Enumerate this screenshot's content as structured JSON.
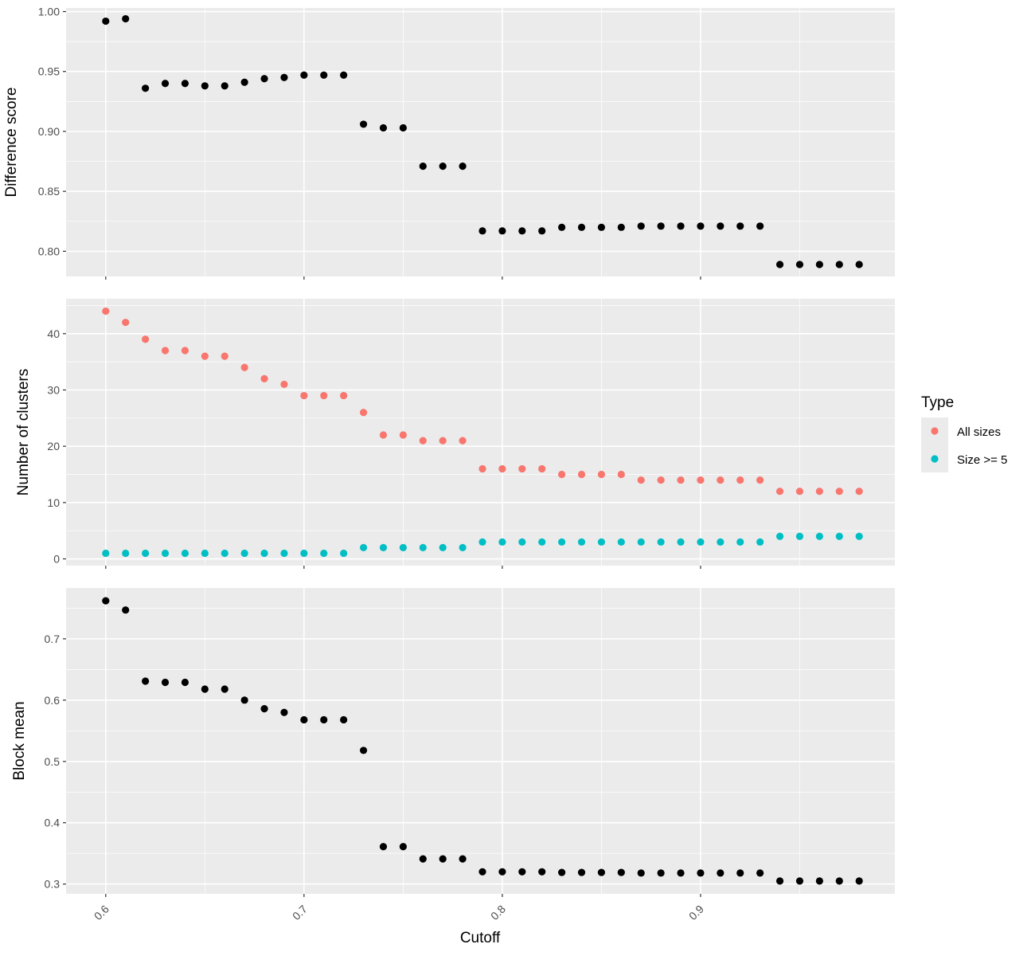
{
  "chart_data": {
    "type": "scatter",
    "shared_x": {
      "label": "Cutoff",
      "xlim": [
        0.58,
        0.998
      ],
      "ticks": [
        0.6,
        0.7,
        0.8,
        0.9
      ],
      "tick_labels": [
        "0.6",
        "0.7",
        "0.8",
        "0.9"
      ],
      "tick_label_rotation": "45deg",
      "values": [
        0.6,
        0.61,
        0.62,
        0.63,
        0.64,
        0.65,
        0.66,
        0.67,
        0.68,
        0.69,
        0.7,
        0.71,
        0.72,
        0.73,
        0.74,
        0.75,
        0.76,
        0.77,
        0.78,
        0.79,
        0.8,
        0.81,
        0.82,
        0.83,
        0.84,
        0.85,
        0.86,
        0.87,
        0.88,
        0.89,
        0.9,
        0.91,
        0.92,
        0.93,
        0.94,
        0.95,
        0.96,
        0.97,
        0.98
      ]
    },
    "grid": true,
    "background": "#ebebeb",
    "panels": [
      {
        "ylabel": "Difference score",
        "ylim": [
          0.779,
          1.003
        ],
        "yticks": [
          0.8,
          0.85,
          0.9,
          0.95,
          1.0
        ],
        "ytick_labels": [
          "0.80",
          "0.85",
          "0.90",
          "0.95",
          "1.00"
        ],
        "series": [
          {
            "color": "#000000",
            "values": [
              0.992,
              0.994,
              0.936,
              0.94,
              0.94,
              0.938,
              0.938,
              0.941,
              0.944,
              0.945,
              0.947,
              0.947,
              0.947,
              0.906,
              0.903,
              0.903,
              0.871,
              0.871,
              0.871,
              0.817,
              0.817,
              0.817,
              0.817,
              0.82,
              0.82,
              0.82,
              0.82,
              0.821,
              0.821,
              0.821,
              0.821,
              0.821,
              0.821,
              0.821,
              0.789,
              0.789,
              0.789,
              0.789,
              0.789
            ]
          }
        ]
      },
      {
        "ylabel": "Number of clusters",
        "ylim": [
          -1.2,
          46.2
        ],
        "yticks": [
          0,
          10,
          20,
          30,
          40
        ],
        "ytick_labels": [
          "0",
          "10",
          "20",
          "30",
          "40"
        ],
        "series": [
          {
            "name": "All sizes",
            "color": "#f8766d",
            "values": [
              44,
              42,
              39,
              37,
              37,
              36,
              36,
              34,
              32,
              31,
              29,
              29,
              29,
              26,
              22,
              22,
              21,
              21,
              21,
              16,
              16,
              16,
              16,
              15,
              15,
              15,
              15,
              14,
              14,
              14,
              14,
              14,
              14,
              14,
              12,
              12,
              12,
              12,
              12
            ]
          },
          {
            "name": "Size >= 5",
            "color": "#00bfc4",
            "values": [
              1,
              1,
              1,
              1,
              1,
              1,
              1,
              1,
              1,
              1,
              1,
              1,
              1,
              2,
              2,
              2,
              2,
              2,
              2,
              3,
              3,
              3,
              3,
              3,
              3,
              3,
              3,
              3,
              3,
              3,
              3,
              3,
              3,
              3,
              4,
              4,
              4,
              4,
              4
            ]
          }
        ]
      },
      {
        "ylabel": "Block mean",
        "ylim": [
          0.284,
          0.783
        ],
        "yticks": [
          0.3,
          0.4,
          0.5,
          0.6,
          0.7
        ],
        "ytick_labels": [
          "0.3",
          "0.4",
          "0.5",
          "0.6",
          "0.7"
        ],
        "series": [
          {
            "color": "#000000",
            "values": [
              0.762,
              0.747,
              0.631,
              0.629,
              0.629,
              0.618,
              0.618,
              0.6,
              0.586,
              0.58,
              0.568,
              0.568,
              0.568,
              0.518,
              0.361,
              0.361,
              0.341,
              0.341,
              0.341,
              0.32,
              0.32,
              0.32,
              0.32,
              0.319,
              0.319,
              0.319,
              0.319,
              0.318,
              0.318,
              0.318,
              0.318,
              0.318,
              0.318,
              0.318,
              0.305,
              0.305,
              0.305,
              0.305,
              0.305
            ]
          }
        ]
      }
    ],
    "legend": {
      "title": "Type",
      "placement": "right",
      "entries": [
        {
          "label": "All sizes",
          "color": "#f8766d"
        },
        {
          "label": "Size >= 5",
          "color": "#00bfc4"
        }
      ]
    }
  }
}
